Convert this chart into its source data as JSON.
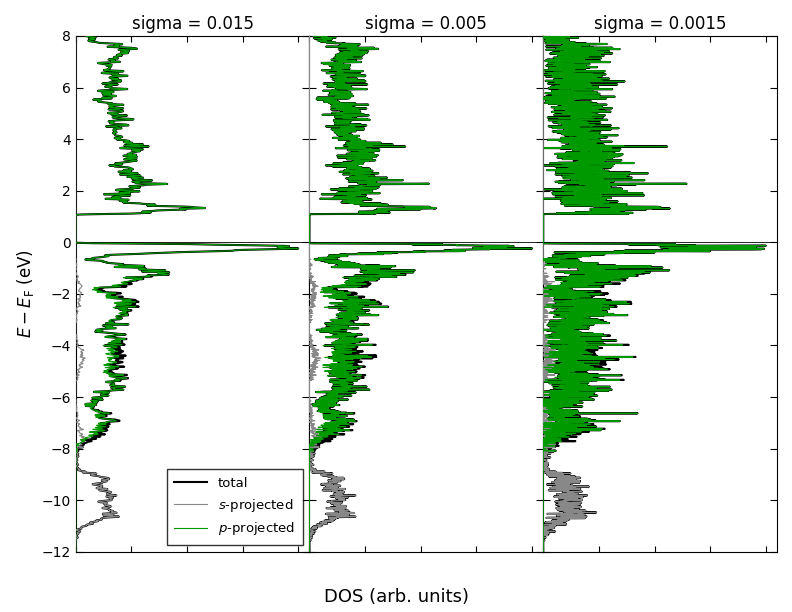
{
  "title_sigma": [
    "sigma = 0.015",
    "sigma = 0.005",
    "sigma = 0.0015"
  ],
  "sigmas": [
    0.015,
    0.005,
    0.0015
  ],
  "ylabel": "$E - E_{\\mathrm{F}}$ (eV)",
  "xlabel": "DOS (arb. units)",
  "ylim": [
    -12,
    8
  ],
  "yticks": [
    -12,
    -10,
    -8,
    -6,
    -4,
    -2,
    0,
    2,
    4,
    6,
    8
  ],
  "color_total": "#000000",
  "color_s": "#888888",
  "color_p": "#009900",
  "lw_total": 1.5,
  "lw_s": 0.8,
  "lw_p": 0.8,
  "legend_labels": [
    "total",
    "s-projected",
    "p-projected"
  ],
  "background_color": "#ffffff",
  "fig_bgcolor": "#ffffff",
  "emin": -12.5,
  "emax": 8.5,
  "n_grid": 3000
}
